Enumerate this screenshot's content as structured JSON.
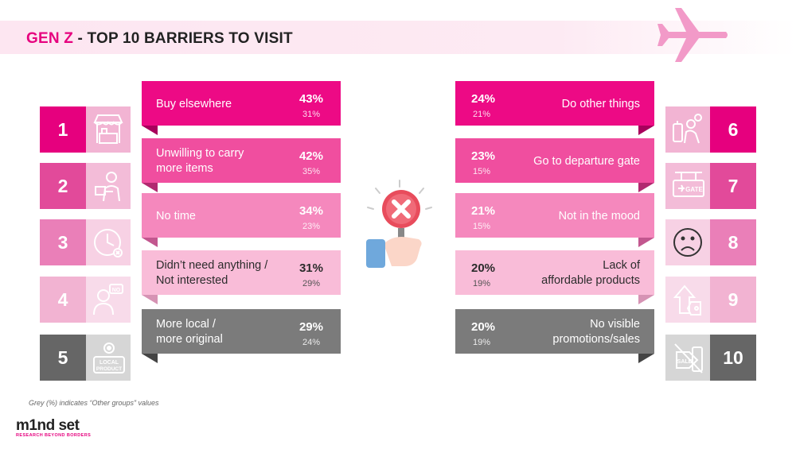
{
  "title": {
    "highlight": "GEN Z",
    "rest": " - TOP 10 BARRIERS TO VISIT"
  },
  "left_items": [
    {
      "rank": "1",
      "label_lines": [
        "Buy elsewhere"
      ],
      "value": "43%",
      "other_value": "31%",
      "icon": "shop-stall-icon"
    },
    {
      "rank": "2",
      "label_lines": [
        "Unwilling to carry",
        "more items"
      ],
      "value": "42%",
      "other_value": "35%",
      "icon": "person-carrying-boxes-icon"
    },
    {
      "rank": "3",
      "label_lines": [
        "No time"
      ],
      "value": "34%",
      "other_value": "23%",
      "icon": "clock-icon"
    },
    {
      "rank": "4",
      "label_lines": [
        "Didn’t need anything /",
        "Not interested"
      ],
      "value": "31%",
      "other_value": "29%",
      "icon": "person-saying-no-icon"
    },
    {
      "rank": "5",
      "label_lines": [
        "More local /",
        "more original"
      ],
      "value": "29%",
      "other_value": "24%",
      "icon": "local-product-badge-icon",
      "icon_text": [
        "LOCAL",
        "PRODUCT"
      ]
    }
  ],
  "right_items": [
    {
      "rank": "6",
      "label_lines": [
        "Do other things"
      ],
      "value": "24%",
      "other_value": "21%",
      "icon": "traveler-waiting-icon"
    },
    {
      "rank": "7",
      "label_lines": [
        "Go to departure gate"
      ],
      "value": "23%",
      "other_value": "15%",
      "icon": "gate-sign-icon",
      "icon_text": [
        "GATE"
      ]
    },
    {
      "rank": "8",
      "label_lines": [
        "Not in the mood"
      ],
      "value": "21%",
      "other_value": "15%",
      "icon": "sad-face-icon"
    },
    {
      "rank": "9",
      "label_lines": [
        "Lack of",
        "affordable products"
      ],
      "value": "20%",
      "other_value": "19%",
      "icon": "price-tag-up-arrow-icon"
    },
    {
      "rank": "10",
      "label_lines": [
        "No visible",
        "promotions/sales"
      ],
      "value": "20%",
      "other_value": "19%",
      "icon": "no-sale-tag-icon",
      "icon_text": [
        "SALE"
      ]
    }
  ],
  "footnote": "Grey (%) indicates “Other groups” values",
  "logo": {
    "word": "m1nd set",
    "tagline": "RESEARCH BEYOND BORDERS"
  },
  "colors": {
    "accent": "#e6007e",
    "rank_fill": [
      "#e6007e",
      "#e24a9a",
      "#ea7fb8",
      "#f2b3d2",
      "#666666"
    ],
    "band_fill": [
      "#ed0a85",
      "#f04e9f",
      "#f588bd",
      "#f9bcd8",
      "#7b7b7b"
    ],
    "icon_fill": [
      "#f2b4d3",
      "#f3bcd8",
      "#f7d1e4",
      "#f8dbea",
      "#d6d6d6"
    ],
    "fold_fill": [
      "#a8005c",
      "#b12a70",
      "#c2578f",
      "#d693b4",
      "#444444"
    ]
  },
  "icons": {
    "plane": "airplane-icon",
    "center": "magnifier-cross-icon"
  }
}
